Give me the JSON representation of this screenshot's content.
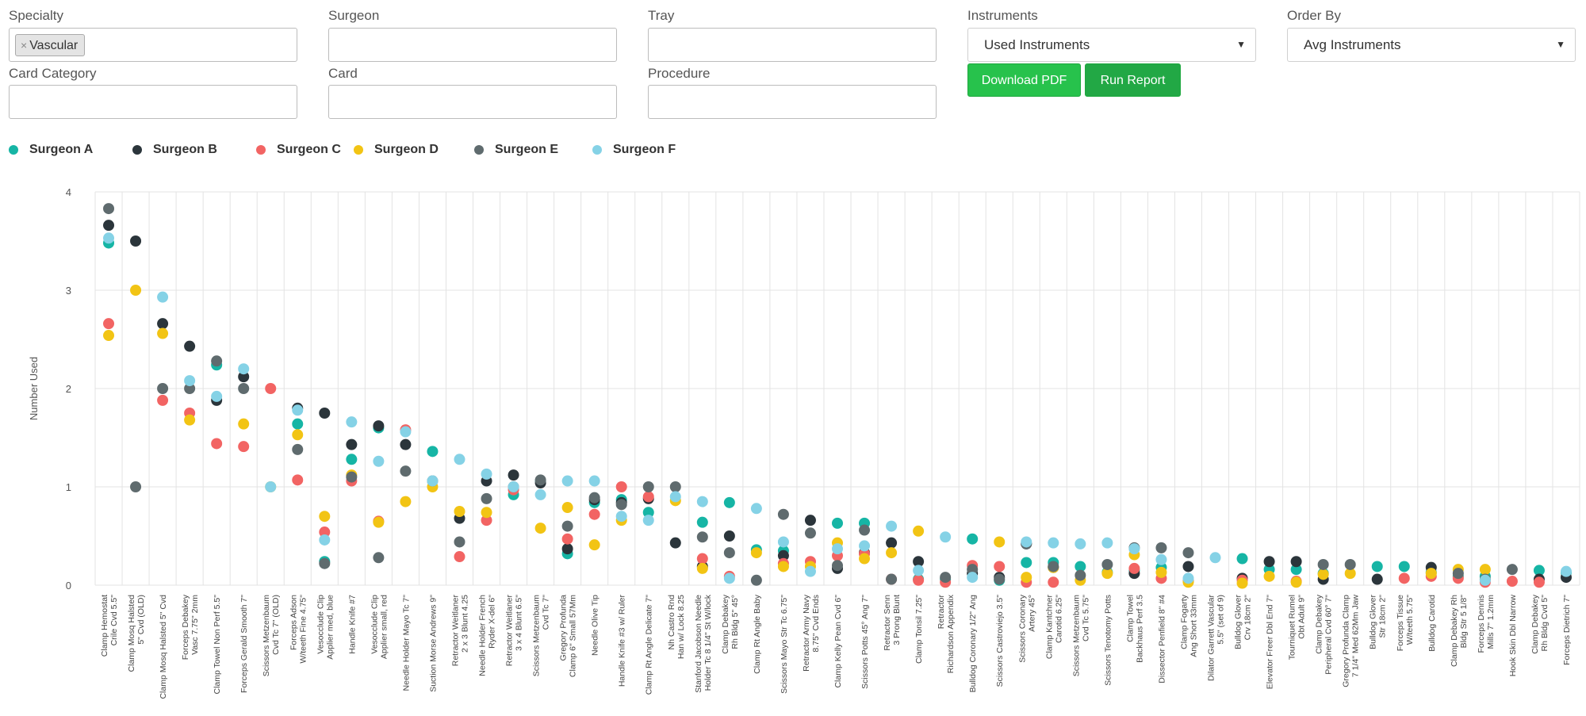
{
  "filters": {
    "specialty": {
      "label": "Specialty",
      "chip": "Vascular",
      "chip_remove": "×"
    },
    "surgeon": {
      "label": "Surgeon"
    },
    "tray": {
      "label": "Tray"
    },
    "instruments": {
      "label": "Instruments",
      "value": "Used Instruments"
    },
    "order_by": {
      "label": "Order By",
      "value": "Avg Instruments"
    },
    "card_category": {
      "label": "Card Category"
    },
    "card": {
      "label": "Card"
    },
    "procedure": {
      "label": "Procedure"
    },
    "download_pdf": "Download PDF",
    "run_report": "Run Report",
    "caret": "▼"
  },
  "colors": {
    "surgeon_a": "#16b5a5",
    "surgeon_b": "#2b353b",
    "surgeon_c": "#f26463",
    "surgeon_d": "#f2c414",
    "surgeon_e": "#5f6b6e",
    "surgeon_f": "#85d2e6",
    "button": "#27c24c"
  },
  "chart_data": {
    "type": "scatter",
    "ylabel": "Number Used",
    "xlabel": "",
    "ylim": [
      0,
      4
    ],
    "yticks": [
      "0",
      "1",
      "2",
      "3",
      "4"
    ],
    "grid": true,
    "legend_position": "top",
    "categories": [
      [
        "Clamp Hemostat",
        "Crile Cvd 5.5\""
      ],
      [
        "Clamp Mosq Halsted",
        "5\" Cvd (OLD)"
      ],
      [
        "Clamp Mosq Halsted 5\" Cvd"
      ],
      [
        "Forceps Debakey",
        "Vasc 7.75\" 2mm"
      ],
      [
        "Clamp Towel Non Perf 5.5\""
      ],
      [
        "Forceps Gerald Smooth 7\""
      ],
      [
        "Scissors Metzenbaum",
        "Cvd Tc 7\" (OLD)"
      ],
      [
        "Forceps Adson",
        "W/teeth Fine 4.75\""
      ],
      [
        "Vesocclude Clip",
        "Applier med, blue"
      ],
      [
        "Handle Knife #7"
      ],
      [
        "Vesocclude Clip",
        "Applier small, red"
      ],
      [
        "Needle Holder Mayo Tc 7\""
      ],
      [
        "Suction Morse Andrews 9\""
      ],
      [
        "Retractor Weitlaner",
        "2 x 3 Blunt 4.25"
      ],
      [
        "Needle Holder French",
        "Ryder X-del 6\""
      ],
      [
        "Retractor Weitlaner",
        "3 x 4 Blunt 6.5\""
      ],
      [
        "Scissors Metzenbaum",
        "Cvd Tc 7\""
      ],
      [
        "Gregory Profunda",
        "Clamp 6\" Small 57Mm"
      ],
      [
        "Needle Olive Tip"
      ],
      [
        "Handle Knife #3 w/ Ruler"
      ],
      [
        "Clamp Rt Angle Delicate 7\""
      ],
      [
        "Nh Castro Rnd",
        "Han w/ Lock 8.25"
      ],
      [
        "Stanford Jacobson Needle",
        "Holder Tc 8 1/4\" St W/lock"
      ],
      [
        "Clamp Debakey",
        "Rh Bldg 5\" 45°"
      ],
      [
        "Clamp Rt Angle Baby"
      ],
      [
        "Scissors Mayo Str Tc 6.75\""
      ],
      [
        "Retractor Army Navy",
        "8.75\" Cvd Ends"
      ],
      [
        "Clamp Kelly Pean Cvd 6\""
      ],
      [
        "Scissors Potts 45° Ang 7\""
      ],
      [
        "Retractor Senn",
        "3 Prong Blunt"
      ],
      [
        "Clamp Tonsil 7.25\""
      ],
      [
        "Retractor",
        "Richardson Appendix"
      ],
      [
        "Bulldog Coronary 1/2\" Ang"
      ],
      [
        "Scissors Castroviejo 3.5\""
      ],
      [
        "Scissors Coronary",
        "Artery 45°"
      ],
      [
        "Clamp Kantchner",
        "Carotid 6.25\""
      ],
      [
        "Scissors Metzenbaum",
        "Cvd Tc 5.75\""
      ],
      [
        "Scissors Tenotomy Potts"
      ],
      [
        "Clamp Towel",
        "Backhaus Perf 3.5"
      ],
      [
        "Dissector Penfield 8\" #4"
      ],
      [
        "Clamp Fogarty",
        "Ang Short 33mm"
      ],
      [
        "Dilator Garrett Vascular",
        "5.5\" (set of 9)"
      ],
      [
        "Bulldog Glover",
        "Crv 18cm 2\""
      ],
      [
        "Elevator Freer Dbl End 7\""
      ],
      [
        "Tourniquet Rumel",
        "Obt Adult 9\""
      ],
      [
        "Clamp Debakey",
        "Peripheral Cvd 60° 7\""
      ],
      [
        "Gregory Profunda Clamp",
        "7 1/4\" Med 62Mm Jaw"
      ],
      [
        "Bulldog Glover",
        "Str 18cm 2\""
      ],
      [
        "Forceps Tissue",
        "W/teeth 5.75\""
      ],
      [
        "Bulldog Carotid"
      ],
      [
        "Clamp Debakey Rh",
        "Bldg Str 5 1/8\""
      ],
      [
        "Forceps Dennis",
        "Mills 7\" 1.2mm"
      ],
      [
        "Hook Skin Dbl Narrow"
      ],
      [
        "Clamp Debakey",
        "Rh Bldg Cvd 5\""
      ],
      [
        "Forceps Dietrich 7\""
      ]
    ],
    "series": [
      {
        "name": "Surgeon A",
        "color": "#16b5a5",
        "values": [
          3.48,
          null,
          null,
          null,
          2.24,
          null,
          null,
          1.64,
          0.24,
          1.28,
          1.6,
          null,
          1.36,
          null,
          null,
          0.92,
          1.06,
          0.32,
          0.84,
          0.87,
          0.74,
          null,
          0.64,
          0.84,
          0.36,
          0.35,
          null,
          0.63,
          0.63,
          null,
          0.06,
          0.06,
          0.47,
          0.05,
          0.23,
          0.23,
          0.19,
          0.13,
          0.15,
          0.18,
          0.04,
          null,
          0.27,
          0.16,
          0.16,
          0.12,
          null,
          0.19,
          0.19,
          0.13,
          0.09,
          0.09,
          null,
          0.15,
          0.13
        ]
      },
      {
        "name": "Surgeon B",
        "color": "#2b353b",
        "values": [
          3.66,
          3.5,
          2.66,
          2.43,
          1.88,
          2.12,
          null,
          1.8,
          1.75,
          1.43,
          1.62,
          1.43,
          null,
          0.68,
          1.06,
          1.12,
          1.04,
          0.37,
          0.87,
          0.84,
          0.88,
          0.43,
          0.19,
          0.5,
          null,
          0.3,
          0.66,
          0.17,
          0.33,
          0.43,
          0.24,
          null,
          0.12,
          0.08,
          0.42,
          0.18,
          null,
          null,
          0.12,
          null,
          0.19,
          null,
          0.07,
          0.24,
          0.24,
          0.06,
          null,
          0.06,
          null,
          0.18,
          null,
          null,
          null,
          0.06,
          0.08
        ]
      },
      {
        "name": "Surgeon C",
        "color": "#f26463",
        "values": [
          2.66,
          null,
          1.88,
          1.75,
          1.44,
          1.41,
          2.0,
          1.07,
          0.54,
          1.06,
          0.65,
          1.58,
          null,
          0.29,
          0.66,
          0.97,
          null,
          0.47,
          0.72,
          1.0,
          0.9,
          null,
          0.27,
          0.09,
          null,
          0.22,
          0.24,
          0.3,
          0.32,
          0.06,
          0.05,
          0.03,
          0.2,
          0.19,
          0.03,
          0.03,
          null,
          null,
          0.17,
          0.07,
          0.04,
          null,
          0.05,
          null,
          0.04,
          null,
          null,
          null,
          0.07,
          0.09,
          0.07,
          0.03,
          0.04,
          0.03,
          null
        ]
      },
      {
        "name": "Surgeon D",
        "color": "#f2c414",
        "values": [
          2.54,
          3.0,
          2.56,
          1.68,
          null,
          1.64,
          1.0,
          1.53,
          0.7,
          1.12,
          0.64,
          0.85,
          1.0,
          0.75,
          0.74,
          null,
          0.58,
          0.79,
          0.41,
          0.66,
          null,
          0.86,
          0.17,
          null,
          0.33,
          0.19,
          0.19,
          0.43,
          0.27,
          0.33,
          0.55,
          null,
          null,
          0.44,
          0.08,
          0.18,
          0.05,
          0.12,
          0.31,
          0.13,
          0.03,
          null,
          0.02,
          0.09,
          0.03,
          0.11,
          0.12,
          null,
          null,
          0.12,
          0.16,
          0.16,
          null,
          null,
          null
        ]
      },
      {
        "name": "Surgeon E",
        "color": "#5f6b6e",
        "values": [
          3.83,
          1.0,
          2.0,
          2.0,
          2.28,
          2.0,
          null,
          1.38,
          0.22,
          1.1,
          0.28,
          1.16,
          1.06,
          0.44,
          0.88,
          1.0,
          1.07,
          0.6,
          0.89,
          0.82,
          1.0,
          1.0,
          0.49,
          0.33,
          0.05,
          0.72,
          0.53,
          0.2,
          0.56,
          0.06,
          null,
          0.08,
          0.16,
          0.06,
          0.42,
          0.19,
          0.1,
          0.21,
          0.38,
          0.38,
          0.33,
          null,
          null,
          null,
          null,
          0.21,
          0.21,
          null,
          null,
          null,
          0.12,
          0.06,
          0.16,
          null,
          null
        ]
      },
      {
        "name": "Surgeon F",
        "color": "#85d2e6",
        "values": [
          3.53,
          null,
          2.93,
          2.08,
          1.92,
          2.2,
          1.0,
          1.78,
          0.46,
          1.66,
          1.26,
          1.56,
          1.06,
          1.28,
          1.13,
          1.0,
          0.92,
          1.06,
          1.06,
          0.7,
          0.66,
          0.9,
          0.85,
          0.07,
          0.78,
          0.44,
          0.14,
          0.37,
          0.4,
          0.6,
          0.15,
          0.49,
          0.08,
          null,
          0.44,
          0.43,
          0.42,
          0.43,
          0.37,
          0.26,
          0.07,
          0.28,
          null,
          null,
          null,
          null,
          null,
          null,
          null,
          null,
          null,
          0.05,
          null,
          null,
          0.14
        ]
      }
    ]
  }
}
